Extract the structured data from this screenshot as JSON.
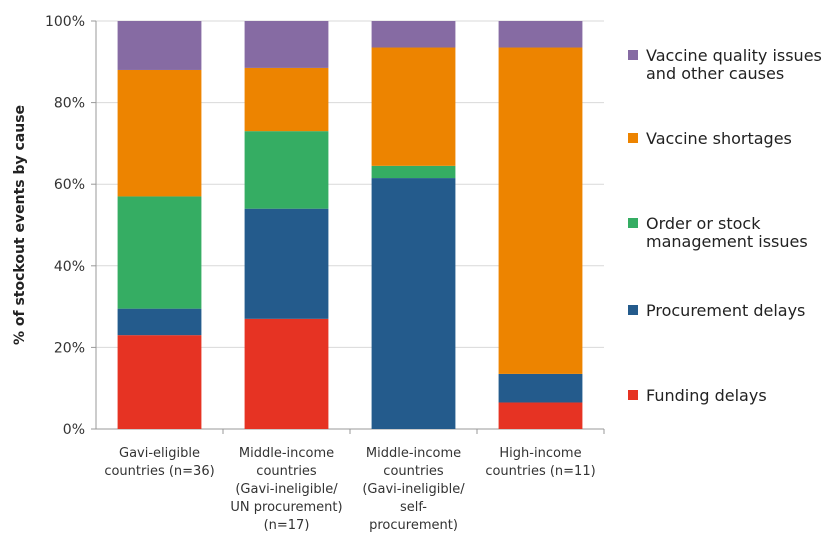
{
  "chart_data": {
    "type": "bar",
    "stacked": true,
    "ylabel": "% of stockout events by cause",
    "ylim": [
      0,
      100
    ],
    "yticks": [
      "0%",
      "20%",
      "40%",
      "60%",
      "80%",
      "100%"
    ],
    "grid": true,
    "legend_position": "right",
    "categories": [
      [
        "Gavi-eligible",
        "countries (n=36)"
      ],
      [
        "Middle-income",
        "countries",
        "(Gavi-ineligible/",
        "UN procurement)",
        "(n=17)"
      ],
      [
        "Middle-income",
        "countries",
        "(Gavi-ineligible/",
        "self-",
        "procurement)"
      ],
      [
        "High-income",
        "countries (n=11)"
      ]
    ],
    "series": [
      {
        "name": "Funding delays",
        "color": "#e63323",
        "values": [
          23,
          27,
          0,
          6.5
        ]
      },
      {
        "name": "Procurement delays",
        "color": "#245b8c",
        "values": [
          6.5,
          27,
          61.5,
          7
        ]
      },
      {
        "name": "Order or stock management issues",
        "color": "#35ad63",
        "values": [
          27.5,
          19,
          3,
          0
        ]
      },
      {
        "name": "Vaccine shortages",
        "color": "#ed8400",
        "values": [
          31,
          15.5,
          29,
          80
        ]
      },
      {
        "name": "Vaccine quality issues and other causes",
        "color": "#866ba3",
        "values": [
          12,
          11.5,
          6.5,
          6.5
        ]
      }
    ],
    "legend": [
      {
        "label_lines": [
          "Vaccine quality issues",
          "and other causes"
        ],
        "color": "#866ba3"
      },
      {
        "label_lines": [
          "Vaccine shortages"
        ],
        "color": "#ed8400"
      },
      {
        "label_lines": [
          "Order or stock",
          "management issues"
        ],
        "color": "#35ad63"
      },
      {
        "label_lines": [
          "Procurement delays"
        ],
        "color": "#245b8c"
      },
      {
        "label_lines": [
          "Funding delays"
        ],
        "color": "#e63323"
      }
    ]
  }
}
